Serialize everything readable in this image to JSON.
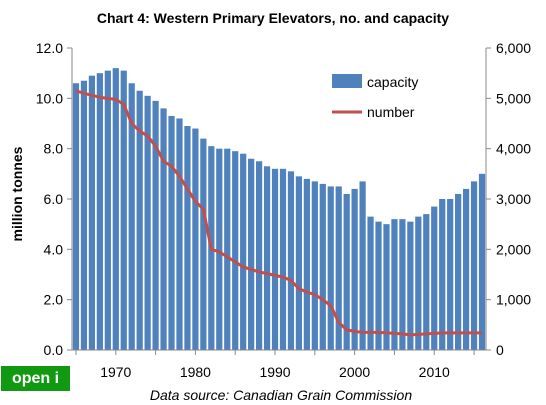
{
  "chart_data": {
    "type": "bar",
    "title": "Chart 4: Western Primary Elevators, no. and capacity",
    "ylabel": "million tonnes",
    "ylim": [
      0,
      12
    ],
    "y_ticks": [
      "0.0",
      "2.0",
      "4.0",
      "6.0",
      "8.0",
      "10.0",
      "12.0"
    ],
    "y2lim": [
      0,
      6000
    ],
    "y2_ticks": [
      "0",
      "1,000",
      "2,000",
      "3,000",
      "4,000",
      "5,000",
      "6,000"
    ],
    "x_ticks": [
      "1970",
      "1980",
      "1990",
      "2000",
      "2010"
    ],
    "x": [
      1965,
      1966,
      1967,
      1968,
      1969,
      1970,
      1971,
      1972,
      1973,
      1974,
      1975,
      1976,
      1977,
      1978,
      1979,
      1980,
      1981,
      1982,
      1983,
      1984,
      1985,
      1986,
      1987,
      1988,
      1989,
      1990,
      1991,
      1992,
      1993,
      1994,
      1995,
      1996,
      1997,
      1998,
      1999,
      2000,
      2001,
      2002,
      2003,
      2004,
      2005,
      2006,
      2007,
      2008,
      2009,
      2010,
      2011,
      2012,
      2013,
      2014,
      2015,
      2016
    ],
    "series": [
      {
        "name": "capacity",
        "axis": "left",
        "type": "bar",
        "color": "#4F81BD",
        "values": [
          10.6,
          10.7,
          10.9,
          11.0,
          11.1,
          11.2,
          11.1,
          10.6,
          10.3,
          10.1,
          9.9,
          9.6,
          9.3,
          9.2,
          8.9,
          8.8,
          8.4,
          8.1,
          8.0,
          8.0,
          7.9,
          7.8,
          7.6,
          7.5,
          7.3,
          7.2,
          7.2,
          7.1,
          6.9,
          6.8,
          6.7,
          6.6,
          6.5,
          6.5,
          6.2,
          6.4,
          6.7,
          5.3,
          5.1,
          5.0,
          5.2,
          5.2,
          5.1,
          5.3,
          5.4,
          5.7,
          6.0,
          6.0,
          6.2,
          6.4,
          6.7,
          7.0
        ]
      },
      {
        "name": "number",
        "axis": "right",
        "type": "line",
        "color": "#C0504D",
        "values": [
          5150,
          5100,
          5060,
          5020,
          5000,
          4980,
          4880,
          4500,
          4350,
          4250,
          4050,
          3750,
          3650,
          3450,
          3200,
          2950,
          2800,
          2000,
          1950,
          1850,
          1750,
          1650,
          1600,
          1550,
          1520,
          1480,
          1450,
          1380,
          1220,
          1150,
          1100,
          1000,
          880,
          550,
          400,
          370,
          350,
          350,
          350,
          340,
          330,
          320,
          300,
          310,
          320,
          330,
          340,
          340,
          340,
          340,
          340,
          340
        ]
      }
    ],
    "legend_position": "top-right",
    "grid": false,
    "source": "Data source: Canadian Grain Commission"
  },
  "badge": {
    "label": "open i"
  }
}
